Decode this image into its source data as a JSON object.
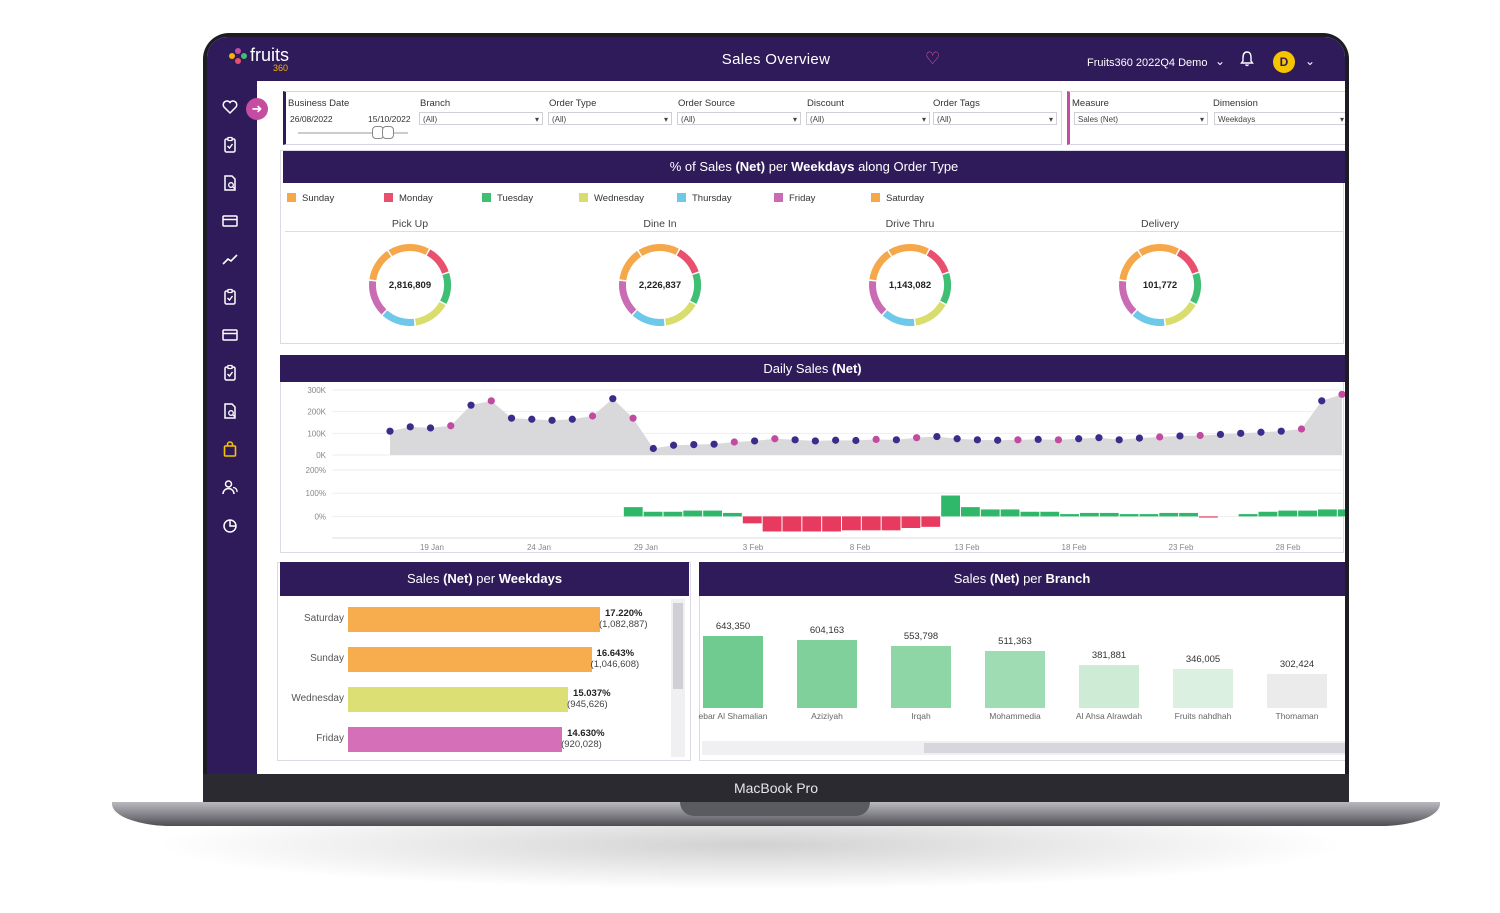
{
  "device_label": "MacBook Pro",
  "app": {
    "logo_text": "fruits",
    "logo_sub": "360",
    "title": "Sales Overview",
    "account": "Fruits360 2022Q4 Demo",
    "avatar_initial": "D"
  },
  "sidebar": {
    "icons": [
      "heart-icon",
      "clipboard-check-icon",
      "document-search-icon",
      "card-icon",
      "trend-line-icon",
      "clipboard-check-icon",
      "card-icon",
      "clipboard-check-icon",
      "document-search-icon",
      "shopping-bag-icon",
      "users-icon",
      "pie-chart-icon"
    ],
    "active_index": 9
  },
  "filters": {
    "business_date": {
      "label": "Business Date",
      "from": "26/08/2022",
      "to": "15/10/2022"
    },
    "branch": {
      "label": "Branch",
      "value": "(All)"
    },
    "order_type": {
      "label": "Order Type",
      "value": "(All)"
    },
    "order_source": {
      "label": "Order Source",
      "value": "(All)"
    },
    "discount": {
      "label": "Discount",
      "value": "(All)"
    },
    "order_tags": {
      "label": "Order Tags",
      "value": "(All)"
    },
    "measure": {
      "label": "Measure",
      "value": "Sales (Net)"
    },
    "dimension": {
      "label": "Dimension",
      "value": "Weekdays"
    }
  },
  "donut_panel": {
    "title_pre": "% of Sales ",
    "title_b1": "(Net)",
    "title_mid": " per ",
    "title_b2": "Weekdays",
    "title_post": " along Order Type",
    "legend": [
      {
        "name": "Sunday",
        "color": "#f5a74a"
      },
      {
        "name": "Monday",
        "color": "#e8506e"
      },
      {
        "name": "Tuesday",
        "color": "#3fbf73"
      },
      {
        "name": "Wednesday",
        "color": "#d9dd6e"
      },
      {
        "name": "Thursday",
        "color": "#6ec8ea"
      },
      {
        "name": "Friday",
        "color": "#c96cb4"
      },
      {
        "name": "Saturday",
        "color": "#f5a74a"
      }
    ],
    "order_types": [
      {
        "label": "Pick Up",
        "value": "2,816,809"
      },
      {
        "label": "Dine In",
        "value": "2,226,837"
      },
      {
        "label": "Drive Thru",
        "value": "1,143,082"
      },
      {
        "label": "Delivery",
        "value": "101,772"
      }
    ]
  },
  "daily_panel": {
    "title_pre": "Daily Sales ",
    "title_b": "(Net)"
  },
  "weekday_panel": {
    "title_pre": "Sales ",
    "title_b1": "(Net)",
    "title_mid": " per ",
    "title_b2": "Weekdays",
    "rows": [
      {
        "label": "Saturday",
        "pct": "17.220%",
        "abs": "(1,082,887)",
        "color": "#f7ad4e"
      },
      {
        "label": "Sunday",
        "pct": "16.643%",
        "abs": "(1,046,608)",
        "color": "#f7ad4e"
      },
      {
        "label": "Wednesday",
        "pct": "15.037%",
        "abs": "(945,626)",
        "color": "#dcdf74"
      },
      {
        "label": "Friday",
        "pct": "14.630%",
        "abs": "(920,028)",
        "color": "#d46fb8"
      }
    ]
  },
  "branch_panel": {
    "title_pre": "Sales ",
    "title_b1": "(Net)",
    "title_mid": " per ",
    "title_b2": "Branch",
    "bars": [
      {
        "name": "ebar Al Shamalian",
        "value": "643,350"
      },
      {
        "name": "Aziziyah",
        "value": "604,163"
      },
      {
        "name": "Irqah",
        "value": "553,798"
      },
      {
        "name": "Mohammedia",
        "value": "511,363"
      },
      {
        "name": "Al Ahsa Alrawdah",
        "value": "381,881"
      },
      {
        "name": "Fruits nahdhah",
        "value": "346,005"
      },
      {
        "name": "Thomaman",
        "value": "302,424"
      }
    ]
  },
  "chart_data": [
    {
      "type": "line",
      "title": "Daily Sales (Net)",
      "y_ticks": [
        "300K",
        "200K",
        "100K",
        "0K"
      ],
      "ylim": [
        0,
        300000
      ],
      "x_ticks": [
        "19 Jan",
        "24 Jan",
        "29 Jan",
        "3 Feb",
        "8 Feb",
        "13 Feb",
        "18 Feb",
        "23 Feb",
        "28 Feb"
      ],
      "series": [
        {
          "values": [
            110000,
            130000,
            125000,
            135000,
            230000,
            250000,
            170000,
            165000,
            160000,
            165000,
            180000,
            260000,
            170000,
            30000,
            45000,
            48000,
            50000,
            60000,
            65000,
            75000,
            70000,
            65000,
            68000,
            67000,
            72000,
            70000,
            80000,
            85000,
            75000,
            70000,
            68000,
            70000,
            72000,
            70000,
            75000,
            80000,
            70000,
            78000,
            83000,
            88000,
            90000,
            95000,
            100000,
            105000,
            110000,
            120000,
            250000,
            280000
          ]
        }
      ]
    },
    {
      "type": "bar",
      "title": "% change",
      "y_ticks": [
        "200%",
        "100%",
        "0%"
      ],
      "ylim": [
        -50,
        200
      ],
      "values": [
        0,
        0,
        0,
        0,
        0,
        0,
        0,
        40,
        20,
        20,
        25,
        25,
        15,
        -30,
        -65,
        -65,
        -65,
        -65,
        -60,
        -60,
        -60,
        -50,
        -45,
        90,
        40,
        30,
        30,
        20,
        20,
        10,
        15,
        15,
        10,
        10,
        15,
        15,
        -5,
        0,
        10,
        20,
        25,
        25,
        30,
        30,
        20,
        40,
        50,
        130,
        200
      ]
    }
  ]
}
